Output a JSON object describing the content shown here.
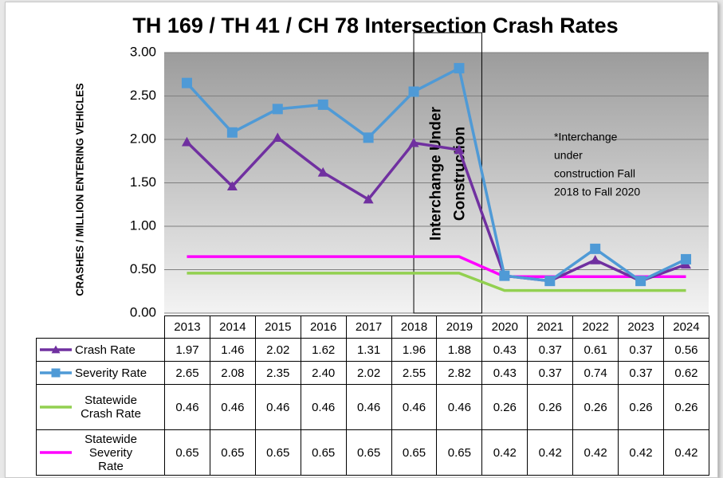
{
  "chart_data": {
    "type": "line",
    "title": "TH 169 / TH 41 / CH 78 Intersection Crash Rates",
    "y_label": "CRASHES / MILLION ENTERING VEHICLES",
    "categories": [
      "2013",
      "2014",
      "2015",
      "2016",
      "2017",
      "2018",
      "2019",
      "2020",
      "2021",
      "2022",
      "2023",
      "2024"
    ],
    "series": [
      {
        "name": "Crash Rate",
        "color": "#7030a0",
        "marker": "triangle",
        "values": [
          1.97,
          1.46,
          2.02,
          1.62,
          1.31,
          1.96,
          1.88,
          0.43,
          0.37,
          0.61,
          0.37,
          0.56
        ],
        "value_labels": [
          "1.97",
          "1.46",
          "2.02",
          "1.62",
          "1.31",
          "1.96",
          "1.88",
          "0.43",
          "0.37",
          "0.61",
          "0.37",
          "0.56"
        ]
      },
      {
        "name": "Severity Rate",
        "color": "#4f9ad6",
        "marker": "square",
        "values": [
          2.65,
          2.08,
          2.35,
          2.4,
          2.02,
          2.55,
          2.82,
          0.43,
          0.37,
          0.74,
          0.37,
          0.62
        ],
        "value_labels": [
          "2.65",
          "2.08",
          "2.35",
          "2.40",
          "2.02",
          "2.55",
          "2.82",
          "0.43",
          "0.37",
          "0.74",
          "0.37",
          "0.62"
        ]
      },
      {
        "name": "Statewide Crash Rate",
        "color": "#92d050",
        "marker": null,
        "values": [
          0.46,
          0.46,
          0.46,
          0.46,
          0.46,
          0.46,
          0.46,
          0.26,
          0.26,
          0.26,
          0.26,
          0.26
        ],
        "value_labels": [
          "0.46",
          "0.46",
          "0.46",
          "0.46",
          "0.46",
          "0.46",
          "0.46",
          "0.26",
          "0.26",
          "0.26",
          "0.26",
          "0.26"
        ]
      },
      {
        "name": "Statewide Severity Rate",
        "color": "#ff00ff",
        "marker": null,
        "values": [
          0.65,
          0.65,
          0.65,
          0.65,
          0.65,
          0.65,
          0.65,
          0.42,
          0.42,
          0.42,
          0.42,
          0.42
        ],
        "value_labels": [
          "0.65",
          "0.65",
          "0.65",
          "0.65",
          "0.65",
          "0.65",
          "0.65",
          "0.42",
          "0.42",
          "0.42",
          "0.42",
          "0.42"
        ]
      }
    ],
    "ylim": [
      0,
      3
    ],
    "yticks": [
      {
        "value": 0,
        "label": "0.00"
      },
      {
        "value": 0.5,
        "label": "0.50"
      },
      {
        "value": 1,
        "label": "1.00"
      },
      {
        "value": 1.5,
        "label": "1.50"
      },
      {
        "value": 2,
        "label": "2.00"
      },
      {
        "value": 2.5,
        "label": "2.50"
      },
      {
        "value": 3,
        "label": "3.00"
      }
    ],
    "grid": true,
    "box_annotation": [
      "Interchange Under",
      "Construction"
    ],
    "note_annotation": [
      "*Interchange",
      "under",
      "construction Fall",
      "2018 to Fall 2020"
    ]
  }
}
